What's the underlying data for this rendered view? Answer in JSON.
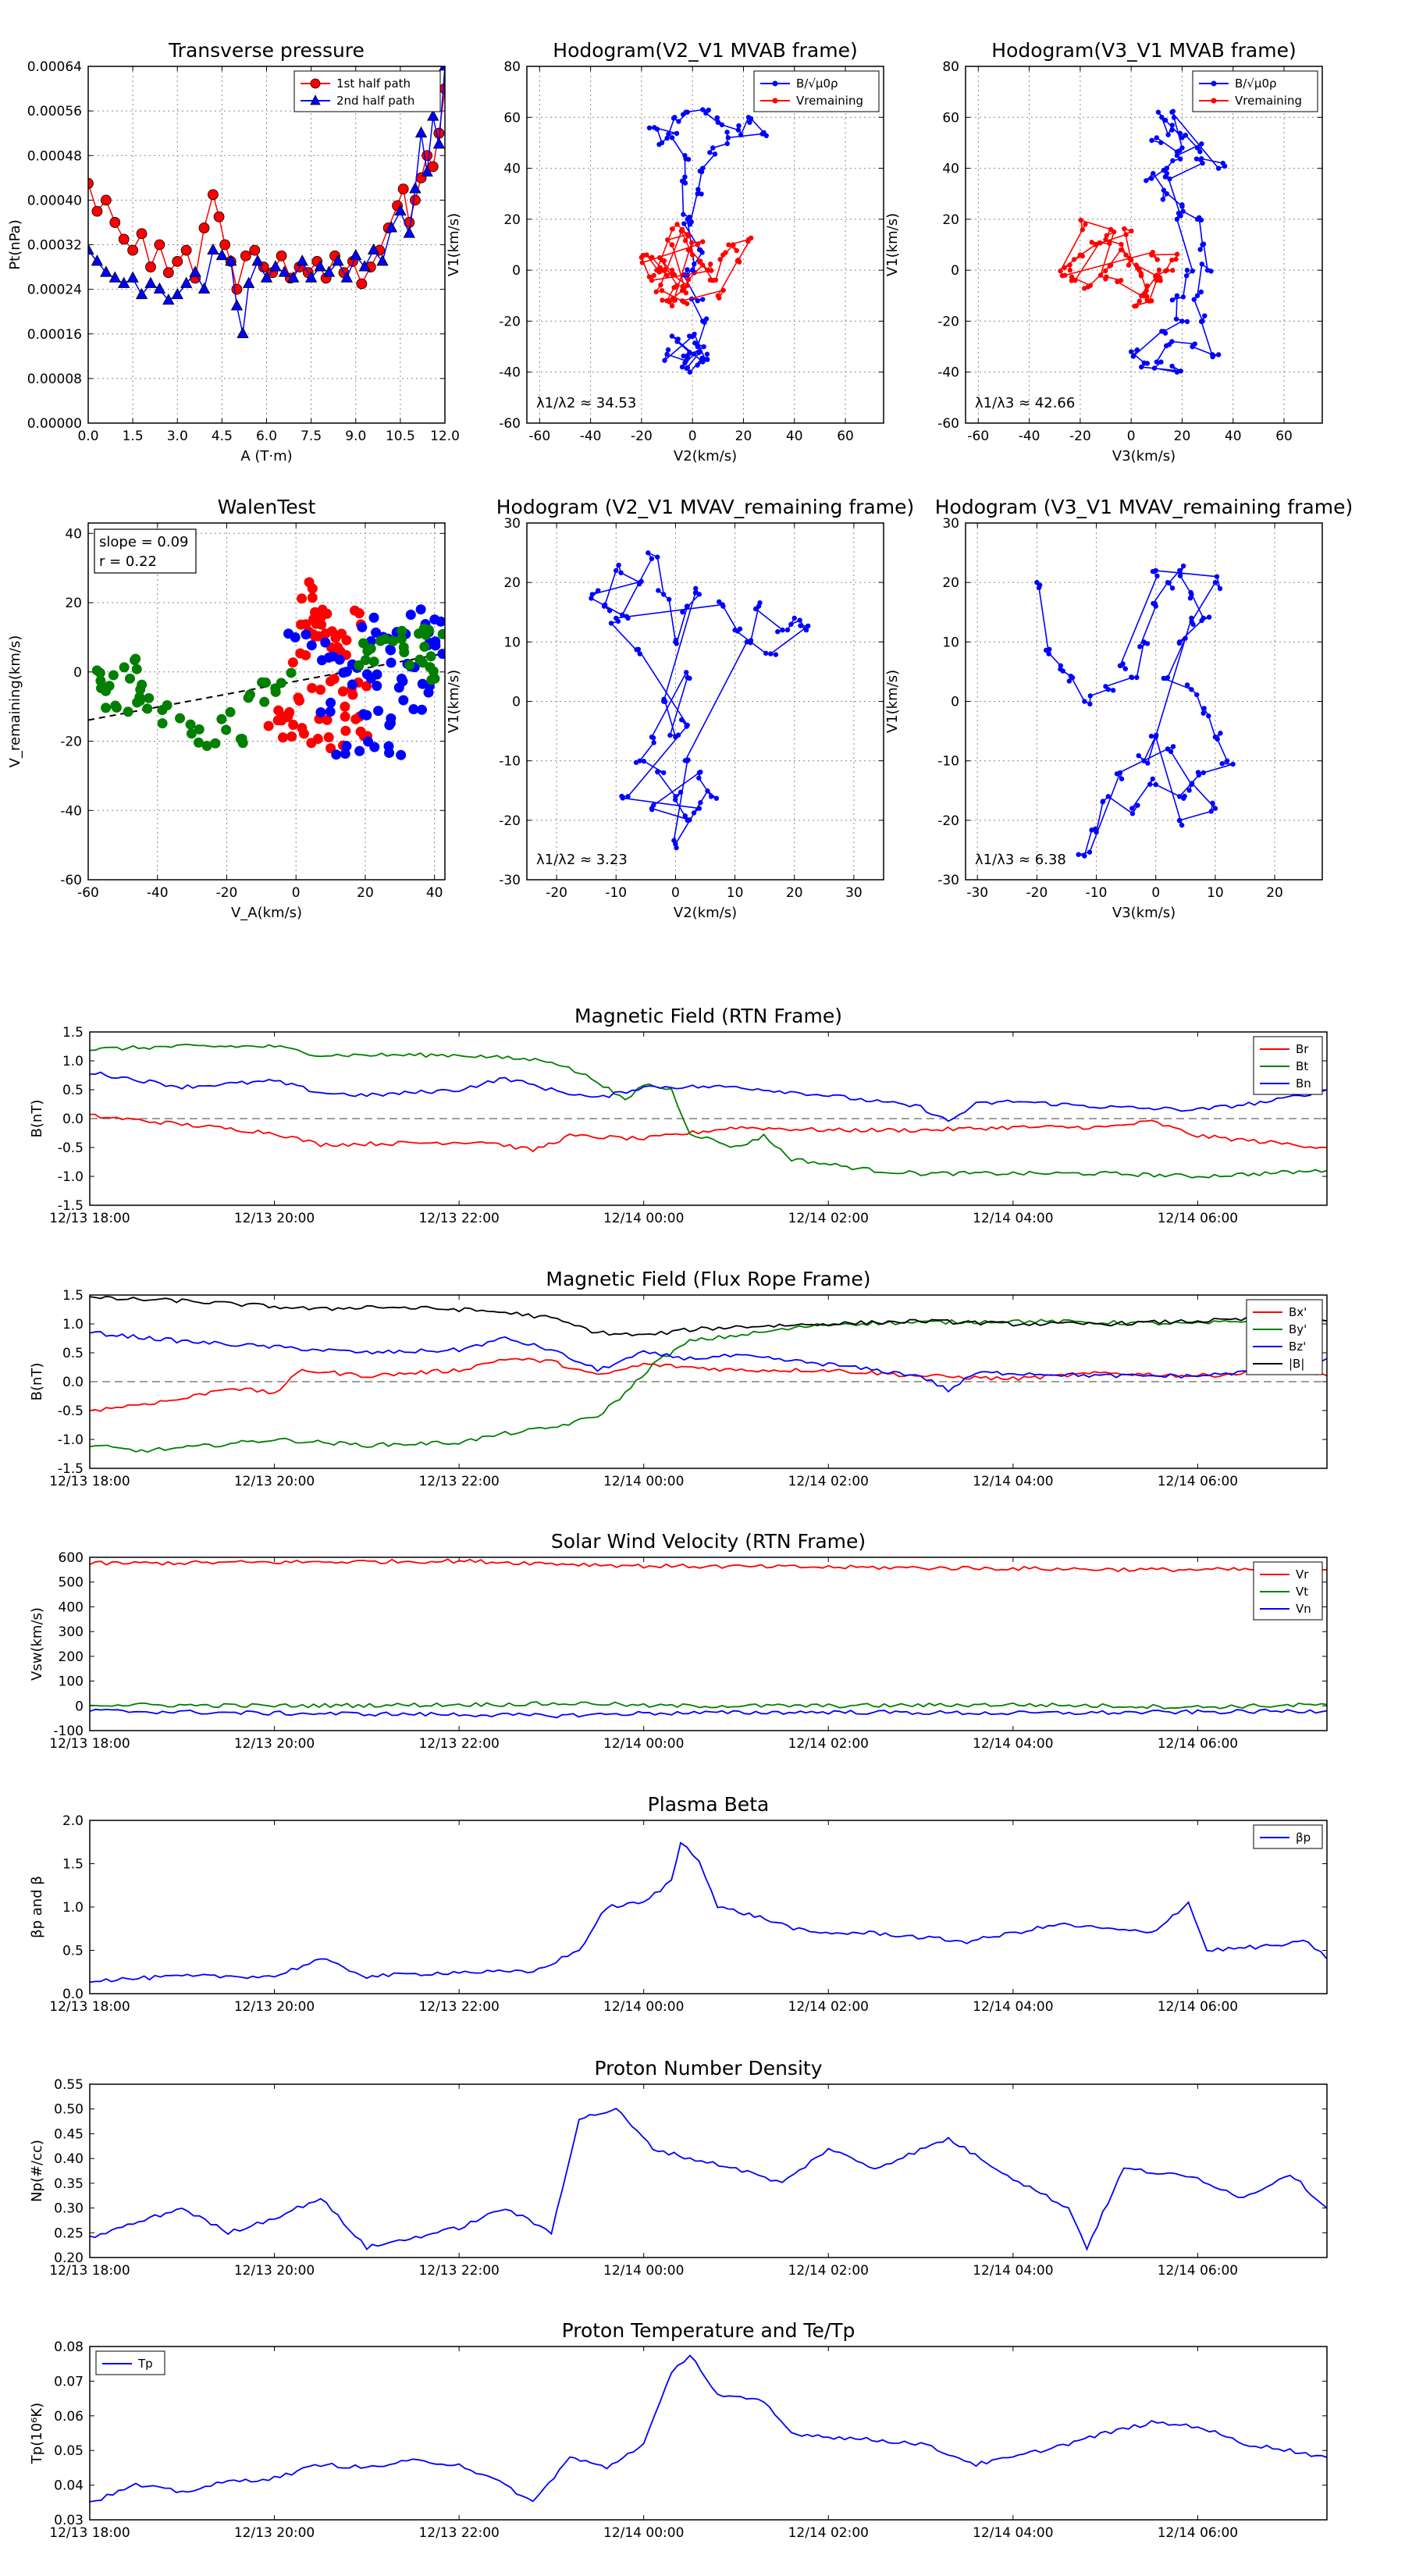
{
  "colors": {
    "red": "#ff0000",
    "green": "#007f00",
    "blue": "#0000ff",
    "black": "#000000",
    "grid": "#7f7f7f"
  },
  "chart_data": [
    {
      "id": "tp",
      "type": "scatter",
      "title": "Transverse pressure",
      "xlabel": "A (T·m)",
      "ylabel": "Pt(nPa)",
      "xlim": [
        0,
        12
      ],
      "ylim": [
        0,
        0.00064
      ],
      "xticks": [
        "0.0",
        "1.5",
        "3.0",
        "4.5",
        "6.0",
        "7.5",
        "9.0",
        "10.5",
        "12.0"
      ],
      "yticks": [
        "0.00000",
        "0.00008",
        "0.00016",
        "0.00024",
        "0.00032",
        "0.00040",
        "0.00048",
        "0.00056",
        "0.00064"
      ],
      "legend": "top-right",
      "series": [
        {
          "name": "1st half path",
          "marker": "circle",
          "color": "#ff0000",
          "x": [
            0.0,
            0.3,
            0.6,
            0.9,
            1.2,
            1.5,
            1.8,
            2.1,
            2.4,
            2.7,
            3.0,
            3.3,
            3.6,
            3.9,
            4.2,
            4.4,
            4.6,
            4.8,
            5.0,
            5.3,
            5.6,
            5.9,
            6.2,
            6.5,
            6.8,
            7.1,
            7.4,
            7.7,
            8.0,
            8.3,
            8.6,
            8.9,
            9.2,
            9.5,
            9.8,
            10.1,
            10.4,
            10.6,
            10.8,
            11.0,
            11.2,
            11.4,
            11.6,
            11.8,
            12.0
          ],
          "y": [
            0.00043,
            0.00038,
            0.0004,
            0.00036,
            0.00033,
            0.00031,
            0.00034,
            0.00028,
            0.00032,
            0.00027,
            0.00029,
            0.00031,
            0.00026,
            0.00035,
            0.00041,
            0.00037,
            0.00032,
            0.00029,
            0.00024,
            0.0003,
            0.00031,
            0.00028,
            0.00027,
            0.0003,
            0.00026,
            0.00028,
            0.00027,
            0.00029,
            0.00026,
            0.0003,
            0.00027,
            0.00029,
            0.00025,
            0.00028,
            0.00031,
            0.00035,
            0.00039,
            0.00042,
            0.00036,
            0.0004,
            0.00044,
            0.00048,
            0.00046,
            0.00052,
            0.0006
          ]
        },
        {
          "name": "2nd half path",
          "marker": "triangle",
          "color": "#0000ff",
          "x": [
            0.0,
            0.3,
            0.6,
            0.9,
            1.2,
            1.5,
            1.8,
            2.1,
            2.4,
            2.7,
            3.0,
            3.3,
            3.6,
            3.9,
            4.2,
            4.5,
            4.8,
            5.0,
            5.2,
            5.4,
            5.7,
            6.0,
            6.3,
            6.6,
            6.9,
            7.2,
            7.5,
            7.8,
            8.1,
            8.4,
            8.7,
            9.0,
            9.3,
            9.6,
            9.9,
            10.2,
            10.5,
            10.8,
            11.0,
            11.2,
            11.4,
            11.6,
            11.8,
            12.0
          ],
          "y": [
            0.00031,
            0.00029,
            0.00027,
            0.00026,
            0.00025,
            0.00026,
            0.00023,
            0.00025,
            0.00024,
            0.00022,
            0.00023,
            0.00025,
            0.00027,
            0.00024,
            0.00031,
            0.0003,
            0.00029,
            0.00021,
            0.00016,
            0.00025,
            0.00029,
            0.00026,
            0.00028,
            0.00027,
            0.00026,
            0.00029,
            0.00026,
            0.00028,
            0.00027,
            0.00029,
            0.00026,
            0.0003,
            0.00028,
            0.00031,
            0.00029,
            0.00035,
            0.00038,
            0.00034,
            0.00042,
            0.00052,
            0.00045,
            0.00055,
            0.0005,
            0.00064
          ]
        }
      ]
    },
    {
      "id": "hodo1",
      "type": "line",
      "title": "Hodogram(V2_V1 MVAB frame)",
      "xlabel": "V2(km/s)",
      "ylabel": "V1(km/s)",
      "xlim": [
        -65,
        75
      ],
      "ylim": [
        -60,
        80
      ],
      "xticks": [
        "-60",
        "-40",
        "-20",
        "0",
        "20",
        "40",
        "60"
      ],
      "yticks": [
        "-60",
        "-40",
        "-20",
        "0",
        "20",
        "40",
        "60",
        "80"
      ],
      "legend": "top-right",
      "annotation": "λ1/λ2 ≈ 34.53",
      "series": [
        {
          "name": "B/√μ0ρ",
          "color": "#0000ff",
          "cluster": "0,0;-2,20;-4,35;-3,45;-8,52;-15,56;-12,50;-7,60;-2,62;4,63;10,58;18,55;22,60;28,54;14,52;8,48;4,40;2,30;-1,18;3,8;-2,-2;2,-12;4,-20;2,-30;-2,-34;-6,-28;4,-36;-1,-40;3,-32;-4,-38;-10,-33;0,-26;5,-35"
        },
        {
          "name": "Vremaining",
          "color": "#ff0000",
          "cluster": "-8,0;-12,4;-6,-6;-10,-12;-4,-8;-8,10;-2,14;-6,18;-14,0;-18,6;-10,-2;-2,-6;4,2;8,-4;12,6;16,10;22,12;18,4;10,-10;-4,-12;-12,-8;-4,16;0,6;6,0;-16,-4;-20,5;2,10;-8,-14"
        }
      ]
    },
    {
      "id": "hodo2",
      "type": "line",
      "title": "Hodogram(V3_V1 MVAB frame)",
      "xlabel": "V3(km/s)",
      "ylabel": "V1(km/s)",
      "xlim": [
        -65,
        75
      ],
      "ylim": [
        -60,
        80
      ],
      "xticks": [
        "-60",
        "-40",
        "-20",
        "0",
        "20",
        "40",
        "60"
      ],
      "yticks": [
        "-60",
        "-40",
        "-20",
        "0",
        "20",
        "40",
        "60",
        "80"
      ],
      "legend": "top-right",
      "annotation": "λ1/λ3 ≈ 42.66",
      "series": [
        {
          "name": "B/√μ0ρ",
          "color": "#0000ff",
          "cluster": "16,55;12,60;20,52;26,48;18,45;14,40;8,36;14,30;20,25;26,20;28,10;30,0;26,-10;28,-20;32,-34;24,-30;16,-28;10,-36;18,-40;4,-38;0,-32;12,-24;20,-20;18,-10;22,0;18,20;14,38;28,42;36,42;16,62;20,48;10,52"
        },
        {
          "name": "Vremaining",
          "color": "#ff0000",
          "cluster": "-24,0;-20,6;-14,10;-22,-4;-16,-6;-8,2;-4,8;-10,12;-2,14;0,4;4,-2;6,-8;2,-14;8,-12;10,-4;14,0;16,4;8,6;-26,-2;-18,18;-8,16;-12,-2;-4,-4;4,-10;10,-2;2,2"
        }
      ]
    },
    {
      "id": "walen",
      "type": "scatter",
      "title": "WalenTest",
      "xlabel": "V_A(km/s)",
      "ylabel": "V_remaining(km/s)",
      "xlim": [
        -60,
        43
      ],
      "ylim": [
        -60,
        43
      ],
      "xticks": [
        "-60",
        "-40",
        "-20",
        "0",
        "20",
        "40"
      ],
      "yticks": [
        "-60",
        "-40",
        "-20",
        "0",
        "20",
        "40"
      ],
      "legend": "none",
      "annotation": [
        "slope = 0.09",
        "r = 0.22"
      ],
      "fit": {
        "slope": 0.09,
        "intercept": 1.5
      },
      "series": [
        {
          "name": "red",
          "color": "#ff0000",
          "cluster": "2,24;5,20;8,16;10,10;14,12;6,8;4,12;12,6;-4,-10;-6,-16;0,-14;4,-20;8,-16;12,-20;16,-12;20,-18;2,-6;10,-4;18,-6;6,14;16,16;0,4;-2,-18;14,-8"
        },
        {
          "name": "blue",
          "color": "#0000ff",
          "cluster": "0,10;6,6;12,4;18,2;24,8;30,12;36,10;40,6;22,-10;26,-14;20,-20;28,-4;32,0;34,-8;16,-2;24,-2;10,-10;38,-4;28,-22;14,-24;30,4;22,14;42,14;36,16"
        },
        {
          "name": "green",
          "color": "#007f00",
          "cluster": "-50,0;-46,-6;-52,-8;-40,-8;-56,-4;-44,2;-36,-12;-30,-16;-26,-20;-20,-14;-12,-8;-8,-4;-4,-2;20,4;26,8;30,10;34,4;38,2;42,0;36,12;22,6;40,10;-48,-10;-58,-2;-16,-18"
        }
      ]
    },
    {
      "id": "hodo3",
      "type": "line",
      "title": "Hodogram (V2_V1 MVAV_remaining frame)",
      "xlabel": "V2(km/s)",
      "ylabel": "V1(km/s)",
      "xlim": [
        -25,
        35
      ],
      "ylim": [
        -30,
        30
      ],
      "xticks": [
        "-20",
        "-10",
        "0",
        "10",
        "20",
        "30"
      ],
      "yticks": [
        "-30",
        "-20",
        "-10",
        "0",
        "10",
        "20",
        "30"
      ],
      "legend": "none",
      "annotation": "λ1/λ2 ≈ 3.23",
      "series": [
        {
          "name": "B",
          "color": "#0000ff",
          "cluster": "-12,16;-10,22;-6,20;-14,18;-8,14;-4,24;-2,18;0,10;2,16;4,18;-2,0;0,-6;2,4;-4,-6;-6,-10;-2,-12;0,-16;2,-20;-4,-18;4,-12;6,-16;0,-24;2,-10;12,10;14,16;18,12;20,14;22,12;16,8;10,12;8,16;-10,14;-6,8;2,-4;-8,-16;4,-18"
        }
      ]
    },
    {
      "id": "hodo4",
      "type": "line",
      "title": "Hodogram (V3_V1 MVAV_remaining frame)",
      "xlabel": "V3(km/s)",
      "ylabel": "V1(km/s)",
      "xlim": [
        -32,
        28
      ],
      "ylim": [
        -30,
        30
      ],
      "xticks": [
        "-30",
        "-20",
        "-10",
        "0",
        "10",
        "20"
      ],
      "yticks": [
        "-30",
        "-20",
        "-10",
        "0",
        "10",
        "20",
        "30"
      ],
      "legend": "none",
      "annotation": "λ1/λ3 ≈ 6.38",
      "series": [
        {
          "name": "B",
          "color": "#0000ff",
          "cluster": "-20,20;-18,8;-16,6;-14,4;-12,0;-8,2;-4,4;-2,10;0,16;2,20;4,22;6,18;8,14;4,10;2,4;6,2;8,-2;10,-6;12,-10;8,-12;4,-16;0,-14;-4,-18;-8,-16;-10,-22;-12,-26;-6,-12;2,-8;6,-14;10,-18;4,-20;0,-6;-2,-10;6,14;10,20;0,22;-6,6"
        }
      ]
    },
    {
      "id": "mag_rtn",
      "type": "line",
      "title": "Magnetic Field (RTN Frame)",
      "ylabel": "B(nT)",
      "xticks": [
        "12/13 18:00",
        "12/13 20:00",
        "12/13 22:00",
        "12/14 00:00",
        "12/14 02:00",
        "12/14 04:00",
        "12/14 06:00"
      ],
      "xlim": [
        18,
        31.4
      ],
      "ylim": [
        -1.5,
        1.5
      ],
      "yticks": [
        "-1.5",
        "-1.0",
        "-0.5",
        "0.0",
        "0.5",
        "1.0",
        "1.5"
      ],
      "legend": "top-right",
      "series": [
        {
          "name": "Br",
          "color": "#ff0000",
          "anchors": "18,0.05;19,-0.1;20,-0.25;20.5,-0.45;22.3,-0.4;22.8,-0.55;23.2,-0.3;24,-0.35;25,-0.15;26,-0.2;27,-0.2;28,-0.15;29,-0.15;29.5,-0.05;30,-0.3;31.4,-0.5"
        },
        {
          "name": "Bt",
          "color": "#007f00",
          "anchors": "18,1.2;19,1.25;20,1.25;20.5,1.1;22,1.1;23,1.0;23.5,0.65;23.8,0.3;24,0.6;24.3,0.5;24.5,-0.25;25,-0.5;25.3,-0.3;25.6,-0.7;26.5,-0.9;27,-0.95;28,-0.95;29,-0.95;30,-1.0;31.4,-0.9"
        },
        {
          "name": "Bn",
          "color": "#0000ff",
          "anchors": "18,0.8;19,0.55;20,0.65;20.5,0.45;21,0.4;22,0.5;22.5,0.7;23,0.5;23.5,0.35;24,0.55;25,0.55;26,0.4;27,0.2;27.3,-0.05;27.6,0.25;28,0.3;29,0.2;30,0.15;30.8,0.3;31.4,0.5"
        }
      ]
    },
    {
      "id": "mag_fr",
      "type": "line",
      "title": "Magnetic Field (Flux Rope Frame)",
      "ylabel": "B(nT)",
      "xticks": [
        "12/13 18:00",
        "12/13 20:00",
        "12/13 22:00",
        "12/14 00:00",
        "12/14 02:00",
        "12/14 04:00",
        "12/14 06:00"
      ],
      "xlim": [
        18,
        31.4
      ],
      "ylim": [
        -1.5,
        1.5
      ],
      "yticks": [
        "-1.5",
        "-1.0",
        "-0.5",
        "0.0",
        "0.5",
        "1.0",
        "1.5"
      ],
      "legend": "top-right",
      "series": [
        {
          "name": "Bx'",
          "color": "#ff0000",
          "anchors": "18,-0.5;19,-0.3;19.5,-0.1;20,-0.2;20.3,0.2;21,0.1;22,0.2;22.5,0.4;23,0.35;23.5,0.1;24,0.3;25,0.2;26,0.2;27,0.1;28,0.05;29,0.15;30,0.1;31,0.2;31.4,0.1"
        },
        {
          "name": "By'",
          "color": "#007f00",
          "anchors": "18,-1.1;18.5,-1.2;19,-1.15;20,-1.0;21,-1.1;22,-1.05;22.5,-0.9;23,-0.8;23.5,-0.6;23.8,-0.2;24.1,0.3;24.5,0.7;25,0.8;25.5,0.9;26,1.0;28,1.05;30,1.0;31,1.1;31.4,1.05"
        },
        {
          "name": "Bz'",
          "color": "#0000ff",
          "anchors": "18,0.85;19,0.7;20,0.6;21,0.5;22,0.55;22.5,0.75;23,0.55;23.5,0.2;24,0.5;24.5,0.4;25,0.45;26,0.3;27,0.1;27.3,-0.15;27.6,0.15;28,0.15;29,0.1;30,0.1;30.8,0.2;31.4,0.4"
        },
        {
          "name": "|B|",
          "color": "#000000",
          "anchors": "18,1.45;19,1.4;20,1.3;20.5,1.25;21,1.3;22,1.25;22.5,1.2;23,1.1;23.5,0.85;24,0.8;24.5,0.9;25,0.95;26,1.0;27,1.05;28,1.0;29,1.0;30,1.05;31,1.1;31.4,1.05"
        }
      ]
    },
    {
      "id": "vsw",
      "type": "line",
      "title": "Solar Wind Velocity (RTN Frame)",
      "ylabel": "Vsw(km/s)",
      "xticks": [
        "12/13 18:00",
        "12/13 20:00",
        "12/13 22:00",
        "12/14 00:00",
        "12/14 02:00",
        "12/14 04:00",
        "12/14 06:00"
      ],
      "xlim": [
        18,
        31.4
      ],
      "ylim": [
        -100,
        600
      ],
      "yticks": [
        "-100",
        "0",
        "100",
        "200",
        "300",
        "400",
        "500",
        "600"
      ],
      "legend": "top-right",
      "series": [
        {
          "name": "Vr",
          "color": "#ff0000",
          "anchors": "18,575;20,580;22,585;23,575;24,565;26,560;28,555;29.5,550;31.4,550"
        },
        {
          "name": "Vt",
          "color": "#007f00",
          "anchors": "18,5;20,0;22,5;23.5,10;24,0;26,0;28,5;30,-5;31.4,5"
        },
        {
          "name": "Vn",
          "color": "#0000ff",
          "anchors": "18,-20;20,-30;22,-35;23,-40;24,-30;26,-25;28,-30;30,-25;31.4,-20"
        }
      ]
    },
    {
      "id": "beta",
      "type": "line",
      "title": "Plasma Beta",
      "ylabel": "βp and β",
      "xticks": [
        "12/13 18:00",
        "12/13 20:00",
        "12/13 22:00",
        "12/14 00:00",
        "12/14 02:00",
        "12/14 04:00",
        "12/14 06:00"
      ],
      "xlim": [
        18,
        31.4
      ],
      "ylim": [
        0,
        2.0
      ],
      "yticks": [
        "0.0",
        "0.5",
        "1.0",
        "1.5",
        "2.0"
      ],
      "legend": "top-right",
      "series": [
        {
          "name": "βp",
          "color": "#0000ff",
          "anchors": "18,0.15;19,0.2;20,0.2;20.5,0.4;21,0.2;22,0.25;22.8,0.25;23.3,0.5;23.6,1.0;24,1.05;24.3,1.3;24.4,1.75;24.6,1.55;24.8,1.0;25.2,0.9;25.8,0.7;26.5,0.7;27.5,0.6;28.5,0.8;29.5,0.7;29.9,1.05;30.1,0.5;30.8,0.55;31.2,0.6;31.4,0.4"
        }
      ]
    },
    {
      "id": "np",
      "type": "line",
      "title": "Proton Number Density",
      "ylabel": "Np(#/cc)",
      "xticks": [
        "12/13 18:00",
        "12/13 20:00",
        "12/13 22:00",
        "12/14 00:00",
        "12/14 02:00",
        "12/14 04:00",
        "12/14 06:00"
      ],
      "xlim": [
        18,
        31.4
      ],
      "ylim": [
        0.2,
        0.55
      ],
      "yticks": [
        "0.20",
        "0.25",
        "0.30",
        "0.35",
        "0.40",
        "0.45",
        "0.50",
        "0.55"
      ],
      "legend": "none",
      "series": [
        {
          "name": "Np",
          "color": "#0000ff",
          "anchors": "18,0.24;19,0.30;19.5,0.25;20,0.28;20.5,0.32;21,0.22;22,0.26;22.5,0.30;23,0.25;23.3,0.48;23.7,0.50;24.1,0.42;24.5,0.40;25,0.38;25.5,0.35;26,0.42;26.5,0.38;27.3,0.44;28,0.36;28.6,0.30;28.8,0.22;29.2,0.38;30,0.36;30.5,0.32;31,0.37;31.4,0.30"
        }
      ]
    },
    {
      "id": "tp_temp",
      "type": "line",
      "title": "Proton Temperature and Te/Tp",
      "ylabel": "Tp(10⁶K)",
      "xticks": [
        "12/13 18:00",
        "12/13 20:00",
        "12/13 22:00",
        "12/14 00:00",
        "12/14 02:00",
        "12/14 04:00",
        "12/14 06:00"
      ],
      "xlim": [
        18,
        31.4
      ],
      "ylim": [
        0.03,
        0.08
      ],
      "yticks": [
        "0.03",
        "0.04",
        "0.05",
        "0.06",
        "0.07",
        "0.08"
      ],
      "legend": "top-left",
      "series": [
        {
          "name": "Tp",
          "color": "#0000ff",
          "anchors": "18,0.035;18.5,0.040;19,0.038;19.5,0.041;20,0.042;20.5,0.046;21,0.045;21.5,0.047;22,0.046;22.5,0.040;22.8,0.035;23.2,0.048;23.6,0.045;24,0.052;24.3,0.072;24.5,0.078;24.8,0.066;25.3,0.064;25.6,0.055;26,0.054;27,0.052;27.6,0.046;28,0.048;28.6,0.052;29,0.055;29.5,0.058;30,0.057;30.5,0.052;31,0.050;31.4,0.048"
        }
      ]
    }
  ]
}
